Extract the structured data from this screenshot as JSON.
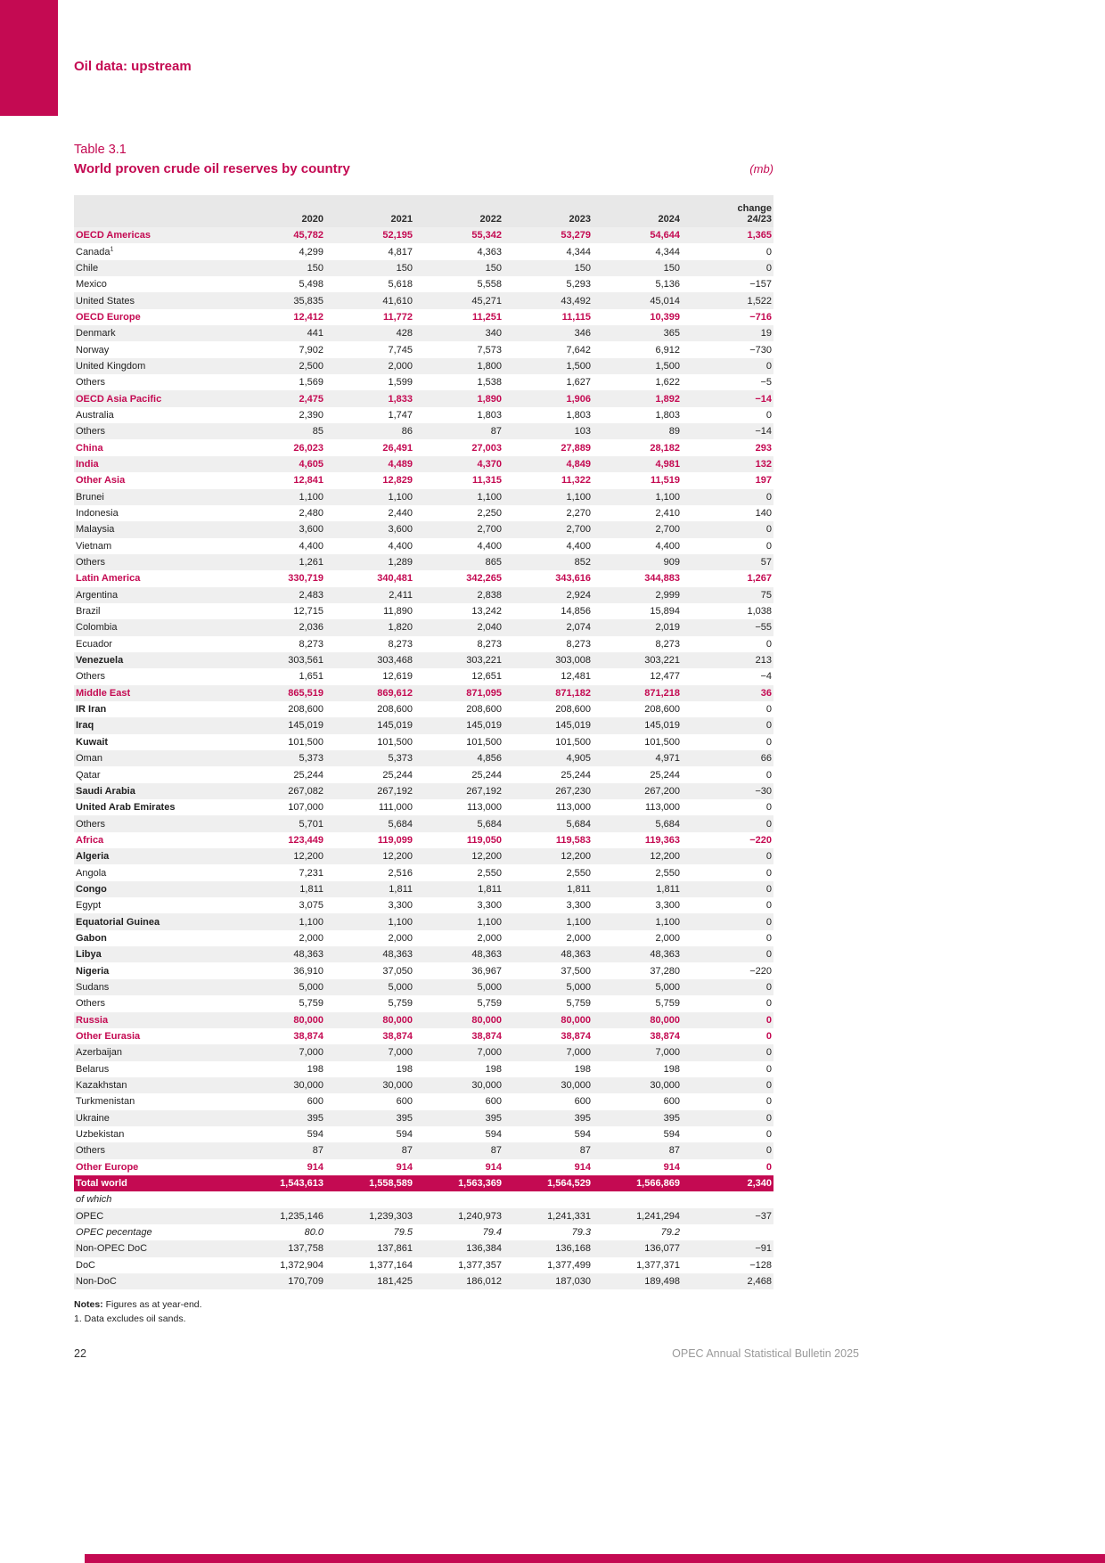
{
  "header": {
    "section_title": "Oil data: upstream"
  },
  "table_meta": {
    "label": "Table 3.1",
    "title": "World proven crude oil reserves by country",
    "unit": "(mb)"
  },
  "columns": {
    "years": [
      "2020",
      "2021",
      "2022",
      "2023",
      "2024"
    ],
    "change_line1": "change",
    "change_line2": "24/23"
  },
  "rows": [
    {
      "label": "OECD Americas",
      "style": "section",
      "values": [
        "45,782",
        "52,195",
        "55,342",
        "53,279",
        "54,644",
        "1,365"
      ]
    },
    {
      "label": "Canada",
      "sup": "1",
      "style": "plain",
      "values": [
        "4,299",
        "4,817",
        "4,363",
        "4,344",
        "4,344",
        "0"
      ]
    },
    {
      "label": "Chile",
      "style": "plain",
      "values": [
        "150",
        "150",
        "150",
        "150",
        "150",
        "0"
      ]
    },
    {
      "label": "Mexico",
      "style": "plain",
      "values": [
        "5,498",
        "5,618",
        "5,558",
        "5,293",
        "5,136",
        "−157"
      ]
    },
    {
      "label": "United States",
      "style": "plain",
      "values": [
        "35,835",
        "41,610",
        "45,271",
        "43,492",
        "45,014",
        "1,522"
      ]
    },
    {
      "label": "OECD Europe",
      "style": "section",
      "values": [
        "12,412",
        "11,772",
        "11,251",
        "11,115",
        "10,399",
        "−716"
      ]
    },
    {
      "label": "Denmark",
      "style": "plain",
      "values": [
        "441",
        "428",
        "340",
        "346",
        "365",
        "19"
      ]
    },
    {
      "label": "Norway",
      "style": "plain",
      "values": [
        "7,902",
        "7,745",
        "7,573",
        "7,642",
        "6,912",
        "−730"
      ]
    },
    {
      "label": "United Kingdom",
      "style": "plain",
      "values": [
        "2,500",
        "2,000",
        "1,800",
        "1,500",
        "1,500",
        "0"
      ]
    },
    {
      "label": "Others",
      "style": "plain",
      "values": [
        "1,569",
        "1,599",
        "1,538",
        "1,627",
        "1,622",
        "−5"
      ]
    },
    {
      "label": "OECD Asia Pacific",
      "style": "section",
      "values": [
        "2,475",
        "1,833",
        "1,890",
        "1,906",
        "1,892",
        "−14"
      ]
    },
    {
      "label": "Australia",
      "style": "plain",
      "values": [
        "2,390",
        "1,747",
        "1,803",
        "1,803",
        "1,803",
        "0"
      ]
    },
    {
      "label": "Others",
      "style": "plain",
      "values": [
        "85",
        "86",
        "87",
        "103",
        "89",
        "−14"
      ]
    },
    {
      "label": "China",
      "style": "section",
      "values": [
        "26,023",
        "26,491",
        "27,003",
        "27,889",
        "28,182",
        "293"
      ]
    },
    {
      "label": "India",
      "style": "section",
      "values": [
        "4,605",
        "4,489",
        "4,370",
        "4,849",
        "4,981",
        "132"
      ]
    },
    {
      "label": "Other Asia",
      "style": "section",
      "values": [
        "12,841",
        "12,829",
        "11,315",
        "11,322",
        "11,519",
        "197"
      ]
    },
    {
      "label": "Brunei",
      "style": "plain",
      "values": [
        "1,100",
        "1,100",
        "1,100",
        "1,100",
        "1,100",
        "0"
      ]
    },
    {
      "label": "Indonesia",
      "style": "plain",
      "values": [
        "2,480",
        "2,440",
        "2,250",
        "2,270",
        "2,410",
        "140"
      ]
    },
    {
      "label": "Malaysia",
      "style": "plain",
      "values": [
        "3,600",
        "3,600",
        "2,700",
        "2,700",
        "2,700",
        "0"
      ]
    },
    {
      "label": "Vietnam",
      "style": "plain",
      "values": [
        "4,400",
        "4,400",
        "4,400",
        "4,400",
        "4,400",
        "0"
      ]
    },
    {
      "label": "Others",
      "style": "plain",
      "values": [
        "1,261",
        "1,289",
        "865",
        "852",
        "909",
        "57"
      ]
    },
    {
      "label": "Latin America",
      "style": "section",
      "values": [
        "330,719",
        "340,481",
        "342,265",
        "343,616",
        "344,883",
        "1,267"
      ]
    },
    {
      "label": "Argentina",
      "style": "plain",
      "values": [
        "2,483",
        "2,411",
        "2,838",
        "2,924",
        "2,999",
        "75"
      ]
    },
    {
      "label": "Brazil",
      "style": "plain",
      "values": [
        "12,715",
        "11,890",
        "13,242",
        "14,856",
        "15,894",
        "1,038"
      ]
    },
    {
      "label": "Colombia",
      "style": "plain",
      "values": [
        "2,036",
        "1,820",
        "2,040",
        "2,074",
        "2,019",
        "−55"
      ]
    },
    {
      "label": "Ecuador",
      "style": "plain",
      "values": [
        "8,273",
        "8,273",
        "8,273",
        "8,273",
        "8,273",
        "0"
      ]
    },
    {
      "label": "Venezuela",
      "style": "member",
      "values": [
        "303,561",
        "303,468",
        "303,221",
        "303,008",
        "303,221",
        "213"
      ]
    },
    {
      "label": "Others",
      "style": "plain",
      "values": [
        "1,651",
        "12,619",
        "12,651",
        "12,481",
        "12,477",
        "−4"
      ]
    },
    {
      "label": "Middle East",
      "style": "section",
      "values": [
        "865,519",
        "869,612",
        "871,095",
        "871,182",
        "871,218",
        "36"
      ]
    },
    {
      "label": "IR Iran",
      "style": "member",
      "values": [
        "208,600",
        "208,600",
        "208,600",
        "208,600",
        "208,600",
        "0"
      ]
    },
    {
      "label": "Iraq",
      "style": "member",
      "values": [
        "145,019",
        "145,019",
        "145,019",
        "145,019",
        "145,019",
        "0"
      ]
    },
    {
      "label": "Kuwait",
      "style": "member",
      "values": [
        "101,500",
        "101,500",
        "101,500",
        "101,500",
        "101,500",
        "0"
      ]
    },
    {
      "label": "Oman",
      "style": "plain",
      "values": [
        "5,373",
        "5,373",
        "4,856",
        "4,905",
        "4,971",
        "66"
      ]
    },
    {
      "label": "Qatar",
      "style": "plain",
      "values": [
        "25,244",
        "25,244",
        "25,244",
        "25,244",
        "25,244",
        "0"
      ]
    },
    {
      "label": "Saudi Arabia",
      "style": "member",
      "values": [
        "267,082",
        "267,192",
        "267,192",
        "267,230",
        "267,200",
        "−30"
      ]
    },
    {
      "label": "United Arab Emirates",
      "style": "member",
      "values": [
        "107,000",
        "111,000",
        "113,000",
        "113,000",
        "113,000",
        "0"
      ]
    },
    {
      "label": "Others",
      "style": "plain",
      "values": [
        "5,701",
        "5,684",
        "5,684",
        "5,684",
        "5,684",
        "0"
      ]
    },
    {
      "label": "Africa",
      "style": "section",
      "values": [
        "123,449",
        "119,099",
        "119,050",
        "119,583",
        "119,363",
        "−220"
      ]
    },
    {
      "label": "Algeria",
      "style": "member",
      "values": [
        "12,200",
        "12,200",
        "12,200",
        "12,200",
        "12,200",
        "0"
      ]
    },
    {
      "label": "Angola",
      "style": "plain",
      "values": [
        "7,231",
        "2,516",
        "2,550",
        "2,550",
        "2,550",
        "0"
      ]
    },
    {
      "label": "Congo",
      "style": "member",
      "values": [
        "1,811",
        "1,811",
        "1,811",
        "1,811",
        "1,811",
        "0"
      ]
    },
    {
      "label": "Egypt",
      "style": "plain",
      "values": [
        "3,075",
        "3,300",
        "3,300",
        "3,300",
        "3,300",
        "0"
      ]
    },
    {
      "label": "Equatorial Guinea",
      "style": "member",
      "values": [
        "1,100",
        "1,100",
        "1,100",
        "1,100",
        "1,100",
        "0"
      ]
    },
    {
      "label": "Gabon",
      "style": "member",
      "values": [
        "2,000",
        "2,000",
        "2,000",
        "2,000",
        "2,000",
        "0"
      ]
    },
    {
      "label": "Libya",
      "style": "member",
      "values": [
        "48,363",
        "48,363",
        "48,363",
        "48,363",
        "48,363",
        "0"
      ]
    },
    {
      "label": "Nigeria",
      "style": "member",
      "values": [
        "36,910",
        "37,050",
        "36,967",
        "37,500",
        "37,280",
        "−220"
      ]
    },
    {
      "label": "Sudans",
      "style": "plain",
      "values": [
        "5,000",
        "5,000",
        "5,000",
        "5,000",
        "5,000",
        "0"
      ]
    },
    {
      "label": "Others",
      "style": "plain",
      "values": [
        "5,759",
        "5,759",
        "5,759",
        "5,759",
        "5,759",
        "0"
      ]
    },
    {
      "label": "Russia",
      "style": "section",
      "values": [
        "80,000",
        "80,000",
        "80,000",
        "80,000",
        "80,000",
        "0"
      ]
    },
    {
      "label": "Other Eurasia",
      "style": "section",
      "values": [
        "38,874",
        "38,874",
        "38,874",
        "38,874",
        "38,874",
        "0"
      ]
    },
    {
      "label": "Azerbaijan",
      "style": "plain",
      "values": [
        "7,000",
        "7,000",
        "7,000",
        "7,000",
        "7,000",
        "0"
      ]
    },
    {
      "label": "Belarus",
      "style": "plain",
      "values": [
        "198",
        "198",
        "198",
        "198",
        "198",
        "0"
      ]
    },
    {
      "label": "Kazakhstan",
      "style": "plain",
      "values": [
        "30,000",
        "30,000",
        "30,000",
        "30,000",
        "30,000",
        "0"
      ]
    },
    {
      "label": "Turkmenistan",
      "style": "plain",
      "values": [
        "600",
        "600",
        "600",
        "600",
        "600",
        "0"
      ]
    },
    {
      "label": "Ukraine",
      "style": "plain",
      "values": [
        "395",
        "395",
        "395",
        "395",
        "395",
        "0"
      ]
    },
    {
      "label": "Uzbekistan",
      "style": "plain",
      "values": [
        "594",
        "594",
        "594",
        "594",
        "594",
        "0"
      ]
    },
    {
      "label": "Others",
      "style": "plain",
      "values": [
        "87",
        "87",
        "87",
        "87",
        "87",
        "0"
      ]
    },
    {
      "label": "Other Europe",
      "style": "section",
      "values": [
        "914",
        "914",
        "914",
        "914",
        "914",
        "0"
      ]
    },
    {
      "label": "Total world",
      "style": "total",
      "values": [
        "1,543,613",
        "1,558,589",
        "1,563,369",
        "1,564,529",
        "1,566,869",
        "2,340"
      ]
    },
    {
      "label": "of which",
      "style": "subhead",
      "values": [
        "",
        "",
        "",
        "",
        "",
        ""
      ]
    },
    {
      "label": "OPEC",
      "style": "plain",
      "values": [
        "1,235,146",
        "1,239,303",
        "1,240,973",
        "1,241,331",
        "1,241,294",
        "−37"
      ]
    },
    {
      "label": "OPEC pecentage",
      "style": "pct",
      "values": [
        "80.0",
        "79.5",
        "79.4",
        "79.3",
        "79.2",
        ""
      ]
    },
    {
      "label": "Non-OPEC DoC",
      "style": "plain",
      "values": [
        "137,758",
        "137,861",
        "136,384",
        "136,168",
        "136,077",
        "−91"
      ]
    },
    {
      "label": "DoC",
      "style": "plain",
      "values": [
        "1,372,904",
        "1,377,164",
        "1,377,357",
        "1,377,499",
        "1,377,371",
        "−128"
      ]
    },
    {
      "label": "Non-DoC",
      "style": "plain",
      "values": [
        "170,709",
        "181,425",
        "186,012",
        "187,030",
        "189,498",
        "2,468"
      ]
    }
  ],
  "notes": {
    "label": "Notes:",
    "text": "Figures as at year-end.",
    "footnote1": "1. Data excludes oil sands."
  },
  "footer": {
    "page_number": "22",
    "publication": "OPEC Annual Statistical Bulletin 2025"
  },
  "colors": {
    "accent": "#C40A52",
    "stripe": "#EFEFEF",
    "header_bg": "#E8E8E8"
  }
}
